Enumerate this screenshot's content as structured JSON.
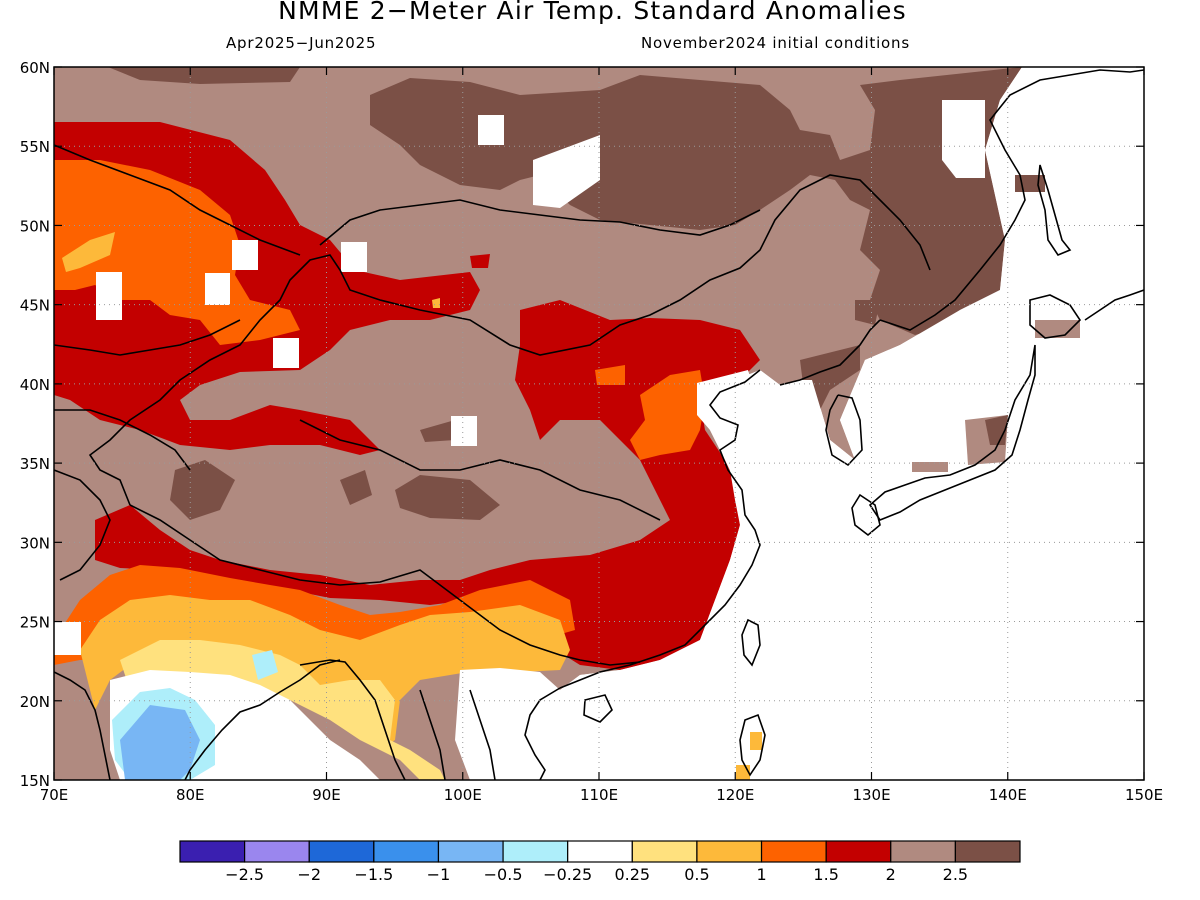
{
  "title": "NMME 2−Meter Air Temp. Standard Anomalies",
  "subtitle_left": "Apr2025−Jun2025",
  "subtitle_right": "November2024 initial conditions",
  "map": {
    "lon_range": [
      70,
      150
    ],
    "lat_range": [
      15,
      60
    ],
    "x_ticks": [
      "70E",
      "80E",
      "90E",
      "100E",
      "110E",
      "120E",
      "130E",
      "140E",
      "150E"
    ],
    "y_ticks": [
      "15N",
      "20N",
      "25N",
      "30N",
      "35N",
      "40N",
      "45N",
      "50N",
      "55N",
      "60N"
    ],
    "gridlines": "dotted"
  },
  "colorbar": {
    "colors": [
      "#3a1fb0",
      "#9a86ee",
      "#1e68d8",
      "#3a90ec",
      "#78b6f4",
      "#aeeefa",
      "#ffffff",
      "#ffe17e",
      "#fdb93a",
      "#fd6200",
      "#c30000",
      "#b08a80",
      "#7b5046"
    ],
    "labels": [
      "−2.5",
      "−2",
      "−1.5",
      "−1",
      "−0.5",
      "−0.25",
      "0.25",
      "0.5",
      "1",
      "1.5",
      "2",
      "2.5"
    ]
  }
}
